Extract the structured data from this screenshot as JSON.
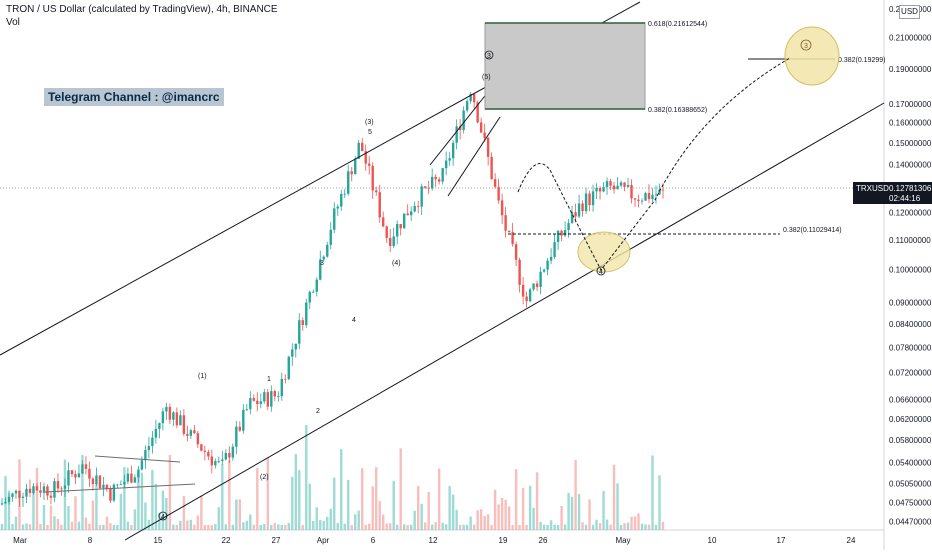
{
  "header": {
    "title": "TRON / US Dollar (calculated by TradingView), 4h, BINANCE",
    "volume_label": "Vol",
    "telegram": "Telegram Channel : @imancrc",
    "currency": "USD"
  },
  "last_price": {
    "symbol": "TRXUSD",
    "price": "0.12781306",
    "countdown": "02:44:16"
  },
  "fib_labels": {
    "f618": "0.618(0.21612544)",
    "f382_box": "0.382(0.16388652)",
    "f382_target": "0.382(0.19299)",
    "f382_low": "0.382(0.11029414)"
  },
  "colors": {
    "up": "#26a69a",
    "down": "#ef5350",
    "vol_up": "#7ecfc7",
    "vol_down": "#f4a8a6",
    "highlight_fill": "#f3e6a8",
    "highlight_stroke": "#c9b24a",
    "box_fill": "#c9c9c9"
  },
  "chart_data": {
    "type": "candlestick",
    "title": "TRON / US Dollar (calculated by TradingView), 4h, BINANCE",
    "y_scale": "log",
    "ylim": [
      0.0435,
      0.2369
    ],
    "y_ticks": [
      "0.04470000",
      "0.04750000",
      "0.05050000",
      "0.05400000",
      "0.05800000",
      "0.06200000",
      "0.06600000",
      "0.07200000",
      "0.07800000",
      "0.08400000",
      "0.09000000",
      "0.10000000",
      "0.11000000",
      "0.12000000",
      "0.13000000",
      "0.14000000",
      "0.15000000",
      "0.16000000",
      "0.17000000",
      "0.19000000",
      "0.21000000",
      "0.23000000"
    ],
    "x_ticks": [
      "Mar",
      "8",
      "15",
      "22",
      "27",
      "Apr",
      "6",
      "12",
      "19",
      "26",
      "May",
      "10",
      "17",
      "24"
    ],
    "wave_labels": [
      "(1)",
      "(2)",
      "1",
      "2",
      "3",
      "4",
      "5",
      "(3)",
      "(4)",
      "(5)",
      "3",
      "4",
      "5"
    ],
    "trendlines": "rising channel (upper and lower parallel lines)",
    "price_path": [
      {
        "t": "Mar 1",
        "p": 0.0472
      },
      {
        "t": "Mar 5",
        "p": 0.05
      },
      {
        "t": "Mar 8",
        "p": 0.0495
      },
      {
        "t": "Mar 11",
        "p": 0.0535
      },
      {
        "t": "Mar 14",
        "p": 0.049
      },
      {
        "t": "Mar 17",
        "p": 0.053
      },
      {
        "t": "Mar 20",
        "p": 0.0645
      },
      {
        "t": "Mar 22",
        "p": 0.058
      },
      {
        "t": "Mar 25",
        "p": 0.053
      },
      {
        "t": "Mar 27",
        "p": 0.065
      },
      {
        "t": "Mar 30",
        "p": 0.067
      },
      {
        "t": "Apr 1",
        "p": 0.088
      },
      {
        "t": "Apr 4",
        "p": 0.117
      },
      {
        "t": "Apr 6",
        "p": 0.15
      },
      {
        "t": "Apr 8",
        "p": 0.11
      },
      {
        "t": "Apr 10",
        "p": 0.125
      },
      {
        "t": "Apr 14",
        "p": 0.135
      },
      {
        "t": "Apr 17",
        "p": 0.18
      },
      {
        "t": "Apr 20",
        "p": 0.123
      },
      {
        "t": "Apr 23",
        "p": 0.0905
      },
      {
        "t": "Apr 26",
        "p": 0.108
      },
      {
        "t": "Apr 29",
        "p": 0.124
      },
      {
        "t": "May 2",
        "p": 0.13
      },
      {
        "t": "May 4",
        "p": 0.1265
      },
      {
        "t": "May 5",
        "p": 0.1278
      }
    ],
    "last_price": 0.12781306
  }
}
